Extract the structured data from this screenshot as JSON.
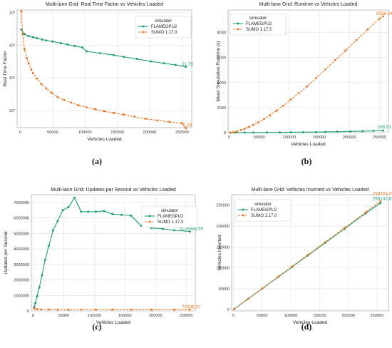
{
  "colors": {
    "flame": "#1b9e77",
    "sumo": "#e8741e",
    "grid": "#e2e2e2",
    "axis": "#9a9a9a"
  },
  "legend": {
    "title": "simulator",
    "entries": [
      "FLAMEGPU2",
      "SUMO 1.17.0"
    ]
  },
  "captions": [
    "(a)",
    "(b)",
    "(c)",
    "(d)"
  ],
  "chart_data": [
    {
      "type": "line",
      "title": "Multi-lane Grid: Real Time Factor vs Vehicles Loaded",
      "xlabel": "Vehicles Loaded",
      "ylabel": "Real Time Factor",
      "yscale": "log",
      "ylim": [
        0.3,
        1200
      ],
      "xlim": [
        -5000,
        265000
      ],
      "xticks": [
        0,
        50000,
        100000,
        150000,
        200000,
        250000
      ],
      "yticks": [
        1,
        10,
        100,
        1000
      ],
      "ytick_labels": [
        "10⁰",
        "10¹",
        "10²",
        "10³"
      ],
      "legend_loc": "upper right",
      "series": [
        {
          "name": "FLAMEGPU2",
          "x": [
            1600,
            6400,
            12800,
            19600,
            25600,
            33600,
            40000,
            50000,
            62500,
            72900,
            84100,
            96100,
            102400,
            123200,
            144400,
            160000,
            180000,
            201600,
            222000,
            240000,
            256000
          ],
          "y": [
            300,
            220,
            190,
            175,
            165,
            150,
            140,
            130,
            115,
            105,
            95,
            85,
            65,
            57,
            50,
            44,
            38,
            32,
            28,
            25,
            21.75
          ],
          "end_label": "21.75"
        },
        {
          "name": "SUMO 1.17.0",
          "x": [
            1600,
            3600,
            6400,
            10000,
            12800,
            16900,
            19600,
            25600,
            32400,
            40000,
            48400,
            57600,
            67600,
            78400,
            90000,
            102400,
            115600,
            129600,
            144400,
            160000,
            176400,
            193600,
            211600,
            230400,
            250000,
            256000
          ],
          "y": [
            1100,
            220,
            75,
            40,
            28,
            18,
            14,
            9.5,
            6.5,
            4.8,
            3.5,
            2.6,
            2.1,
            1.75,
            1.45,
            1.25,
            1.1,
            0.95,
            0.85,
            0.75,
            0.65,
            0.56,
            0.5,
            0.45,
            0.41,
            0.29
          ],
          "end_label": "0.29"
        }
      ]
    },
    {
      "type": "line",
      "title": "Multi-lane Grid: Runtime vs Vehicles Loaded",
      "xlabel": "Vehicles Loaded",
      "ylabel": "Mean Simulation Runtime (s)",
      "ylim": [
        0,
        9800
      ],
      "xlim": [
        -2000,
        265000
      ],
      "xticks": [
        0,
        50000,
        100000,
        150000,
        200000,
        250000
      ],
      "yticks": [
        0,
        2000,
        4000,
        6000,
        8000
      ],
      "legend_loc": "upper left",
      "series": [
        {
          "name": "FLAMEGPU2",
          "x": [
            1600,
            10000,
            25600,
            40000,
            62500,
            84100,
            102400,
            123200,
            144400,
            160000,
            180000,
            201600,
            222000,
            240000,
            256000
          ],
          "y": [
            2,
            4,
            6,
            9,
            14,
            20,
            30,
            38,
            48,
            60,
            75,
            95,
            115,
            140,
            165.51
          ],
          "end_label": "165.51"
        },
        {
          "name": "SUMO 1.17.0",
          "x": [
            1600,
            6400,
            12800,
            19600,
            25600,
            32400,
            40000,
            48400,
            57600,
            67600,
            78400,
            90000,
            102400,
            115600,
            129600,
            144400,
            160000,
            176400,
            193600,
            211600,
            230400,
            250000,
            256000
          ],
          "y": [
            2,
            30,
            100,
            200,
            300,
            450,
            620,
            830,
            1080,
            1380,
            1750,
            2150,
            2650,
            3150,
            3700,
            4350,
            5050,
            5800,
            6550,
            7400,
            8250,
            9100,
            9288.24
          ],
          "end_label": "9288.24"
        }
      ]
    },
    {
      "type": "line",
      "title": "Multi-lane Grid: Updates per Second vs Vehicles Loaded",
      "xlabel": "Vehicles Loaded",
      "ylabel": "Updates per Second",
      "ylim": [
        0,
        7500000
      ],
      "xlim": [
        -3000,
        265000
      ],
      "xticks": [
        0,
        50000,
        100000,
        150000,
        200000,
        250000
      ],
      "yticks": [
        0,
        1000000,
        2000000,
        3000000,
        4000000,
        5000000,
        6000000,
        7000000
      ],
      "ytick_labels": [
        "0",
        "1000000",
        "2000000",
        "3000000",
        "4000000",
        "5000000",
        "6000000",
        "7000000"
      ],
      "legend_loc": "right",
      "series": [
        {
          "name": "FLAMEGPU2",
          "x": [
            1600,
            3600,
            6400,
            10000,
            14400,
            19600,
            25600,
            32400,
            40000,
            48400,
            57600,
            67600,
            78400,
            90000,
            102400,
            115600,
            129600,
            144400,
            160000,
            176400,
            193600,
            211600,
            230400,
            256000
          ],
          "y": [
            250000,
            500000,
            950000,
            1500000,
            2300000,
            3300000,
            4200000,
            5200000,
            5800000,
            6500000,
            6700000,
            7300000,
            6400000,
            6400000,
            6400000,
            6450000,
            6250000,
            6200000,
            6150000,
            5500000,
            5350000,
            5300000,
            5200000,
            5126988.5
          ],
          "end_label": "5126988.50"
        },
        {
          "name": "SUMO 1.17.0",
          "x": [
            1600,
            6400,
            12800,
            25600,
            40000,
            57600,
            78400,
            102400,
            129600,
            160000,
            193600,
            230400,
            256000
          ],
          "y": [
            160000,
            110000,
            95000,
            90000,
            86000,
            84000,
            82000,
            81000,
            80000,
            79000,
            78500,
            78000,
            77006.57
          ],
          "end_label": "77006.57"
        }
      ]
    },
    {
      "type": "line",
      "title": "Multi-lane Grid: Vehicles Inserted vs Vehicles Loaded",
      "xlabel": "Vehicles Loaded",
      "ylabel": "Vehicles Inserted",
      "ylim": [
        -3000,
        275000
      ],
      "xlim": [
        -3000,
        270000
      ],
      "xticks": [
        0,
        50000,
        100000,
        150000,
        200000,
        250000
      ],
      "yticks": [
        0,
        50000,
        100000,
        150000,
        200000,
        250000
      ],
      "legend_loc": "upper left",
      "series": [
        {
          "name": "FLAMEGPU2",
          "x": [
            1600,
            25600,
            50000,
            78400,
            102400,
            129600,
            160000,
            193600,
            230400,
            256000
          ],
          "y": [
            1600,
            25600,
            50000,
            78400,
            102400,
            129600,
            160000,
            193600,
            230400,
            255142.67
          ],
          "end_label": "255142.67"
        },
        {
          "name": "SUMO 1.17.0",
          "x": [
            1600,
            25600,
            50000,
            78400,
            102400,
            129600,
            160000,
            193600,
            230400,
            256000
          ],
          "y": [
            1600,
            25900,
            50500,
            79200,
            103400,
            130900,
            161600,
            195500,
            232700,
            258724.0
          ],
          "end_label": "258724.00"
        }
      ]
    }
  ]
}
